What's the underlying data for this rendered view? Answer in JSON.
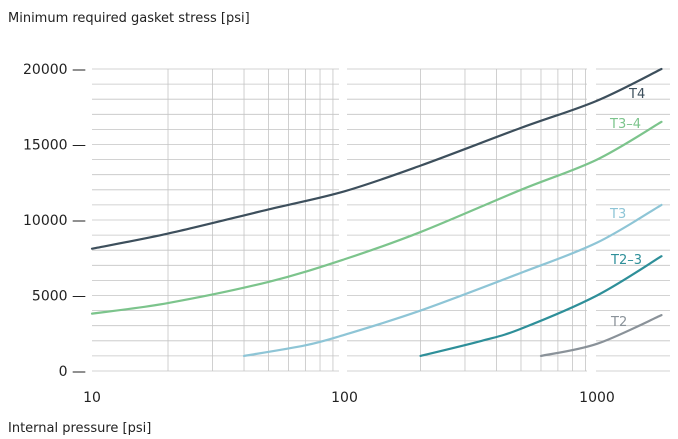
{
  "chart_data": {
    "type": "line",
    "title": "",
    "ylabel": "Minimum required gasket stress [psi]",
    "xlabel": "Internal pressure [psi]",
    "x_scale": "log",
    "xlim": [
      10,
      1800
    ],
    "ylim": [
      0,
      20000
    ],
    "y_ticks": [
      0,
      5000,
      10000,
      15000,
      20000
    ],
    "x_ticks": [
      10,
      100,
      1000
    ],
    "y_tick_labels": [
      "0 —",
      "5000 —",
      "10000 —",
      "15000 —",
      "20000 —"
    ],
    "x_tick_labels": [
      "10",
      "100",
      "1000"
    ],
    "grid": true,
    "series": [
      {
        "name": "T4",
        "color": "#3d4f5c",
        "points": [
          [
            10,
            8100
          ],
          [
            20,
            9100
          ],
          [
            50,
            10700
          ],
          [
            100,
            11900
          ],
          [
            200,
            13600
          ],
          [
            500,
            16100
          ],
          [
            1000,
            17900
          ],
          [
            1800,
            20000
          ]
        ]
      },
      {
        "name": "T3–4",
        "color": "#7cc48c",
        "points": [
          [
            10,
            3800
          ],
          [
            20,
            4500
          ],
          [
            50,
            5900
          ],
          [
            100,
            7400
          ],
          [
            200,
            9200
          ],
          [
            500,
            12000
          ],
          [
            1000,
            14000
          ],
          [
            1800,
            16500
          ]
        ]
      },
      {
        "name": "T3",
        "color": "#8ec5d6",
        "points": [
          [
            40,
            1000
          ],
          [
            70,
            1700
          ],
          [
            100,
            2400
          ],
          [
            200,
            4000
          ],
          [
            500,
            6500
          ],
          [
            1000,
            8500
          ],
          [
            1800,
            11000
          ]
        ]
      },
      {
        "name": "T2–3",
        "color": "#2e8f99",
        "points": [
          [
            200,
            1000
          ],
          [
            350,
            2000
          ],
          [
            500,
            2800
          ],
          [
            1000,
            5000
          ],
          [
            1800,
            7600
          ]
        ]
      },
      {
        "name": "T2",
        "color": "#8a9299",
        "points": [
          [
            600,
            1000
          ],
          [
            1000,
            1800
          ],
          [
            1800,
            3700
          ]
        ]
      }
    ]
  }
}
